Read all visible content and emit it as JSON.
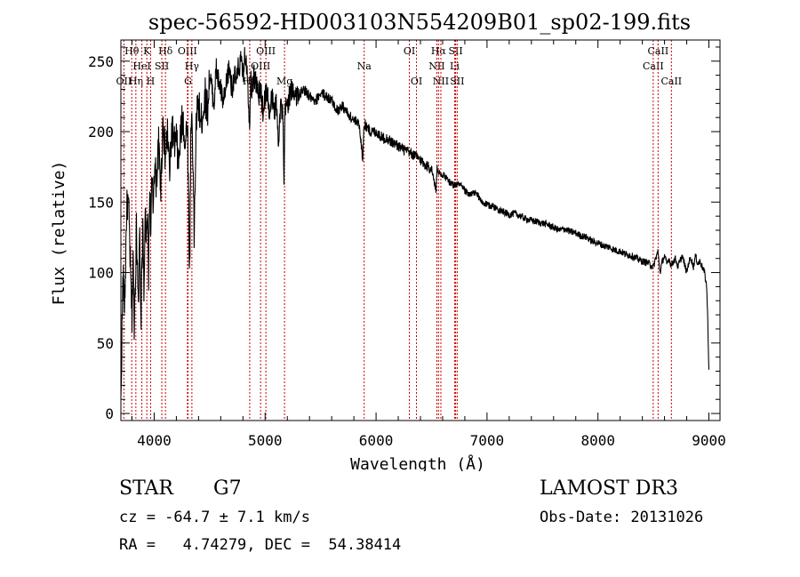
{
  "chart_data": {
    "type": "line",
    "title": "spec-56592-HD003103N554209B01_sp02-199.fits",
    "xlabel": "Wavelength (Å)",
    "ylabel": "Flux (relative)",
    "xlim": [
      3700,
      9100
    ],
    "ylim": [
      -5,
      265
    ],
    "xticks": [
      4000,
      5000,
      6000,
      7000,
      8000,
      9000
    ],
    "yticks": [
      0,
      50,
      100,
      150,
      200,
      250
    ],
    "xtick_labels": [
      "4000",
      "5000",
      "6000",
      "7000",
      "8000",
      "9000"
    ],
    "ytick_labels": [
      "0",
      "50",
      "100",
      "150",
      "200",
      "250"
    ],
    "series": [
      {
        "name": "flux",
        "x": [
          3700,
          3710,
          3720,
          3730,
          3740,
          3750,
          3760,
          3770,
          3780,
          3790,
          3800,
          3810,
          3820,
          3830,
          3840,
          3850,
          3860,
          3870,
          3880,
          3890,
          3900,
          3910,
          3920,
          3930,
          3940,
          3950,
          3960,
          3970,
          3980,
          3990,
          4000,
          4020,
          4040,
          4060,
          4080,
          4100,
          4120,
          4140,
          4160,
          4180,
          4200,
          4220,
          4240,
          4260,
          4280,
          4300,
          4310,
          4320,
          4330,
          4340,
          4350,
          4360,
          4380,
          4400,
          4420,
          4440,
          4460,
          4480,
          4500,
          4520,
          4540,
          4560,
          4580,
          4600,
          4620,
          4640,
          4660,
          4680,
          4700,
          4720,
          4740,
          4760,
          4780,
          4800,
          4820,
          4840,
          4860,
          4870,
          4880,
          4900,
          4920,
          4940,
          4960,
          4980,
          5000,
          5020,
          5040,
          5060,
          5080,
          5100,
          5120,
          5140,
          5160,
          5170,
          5180,
          5200,
          5220,
          5250,
          5300,
          5350,
          5400,
          5450,
          5500,
          5550,
          5600,
          5650,
          5700,
          5750,
          5800,
          5850,
          5880,
          5890,
          5900,
          5950,
          6000,
          6050,
          6100,
          6150,
          6200,
          6250,
          6300,
          6350,
          6400,
          6450,
          6500,
          6540,
          6550,
          6563,
          6570,
          6580,
          6600,
          6650,
          6700,
          6750,
          6800,
          6850,
          6900,
          6950,
          7000,
          7050,
          7100,
          7150,
          7200,
          7250,
          7300,
          7350,
          7400,
          7450,
          7500,
          7550,
          7600,
          7650,
          7700,
          7750,
          7800,
          7850,
          7900,
          7950,
          8000,
          8050,
          8100,
          8150,
          8200,
          8250,
          8300,
          8350,
          8400,
          8450,
          8480,
          8500,
          8520,
          8540,
          8560,
          8580,
          8600,
          8620,
          8640,
          8660,
          8680,
          8700,
          8720,
          8740,
          8760,
          8780,
          8800,
          8820,
          8840,
          8860,
          8880,
          8900,
          8920,
          8940,
          8960,
          8980,
          8990,
          9000
        ],
        "values": [
          5,
          60,
          100,
          75,
          95,
          140,
          150,
          145,
          120,
          90,
          70,
          110,
          65,
          95,
          130,
          105,
          85,
          125,
          60,
          110,
          130,
          80,
          150,
          115,
          140,
          100,
          160,
          130,
          165,
          145,
          175,
          165,
          190,
          160,
          210,
          180,
          200,
          170,
          205,
          190,
          195,
          175,
          200,
          210,
          190,
          210,
          150,
          100,
          195,
          215,
          180,
          125,
          210,
          220,
          205,
          215,
          225,
          215,
          240,
          230,
          220,
          245,
          235,
          230,
          220,
          225,
          240,
          245,
          230,
          240,
          235,
          245,
          250,
          240,
          255,
          245,
          200,
          245,
          230,
          240,
          235,
          225,
          230,
          215,
          225,
          230,
          210,
          225,
          215,
          220,
          195,
          220,
          210,
          160,
          215,
          220,
          225,
          230,
          225,
          230,
          225,
          220,
          228,
          225,
          222,
          215,
          218,
          212,
          208,
          205,
          180,
          202,
          205,
          200,
          200,
          196,
          195,
          192,
          190,
          187,
          185,
          183,
          180,
          176,
          174,
          158,
          176,
          170,
          172,
          168,
          170,
          165,
          162,
          163,
          158,
          155,
          157,
          150,
          148,
          147,
          145,
          143,
          141,
          142,
          140,
          138,
          137,
          136,
          135,
          134,
          132,
          130,
          131,
          129,
          128,
          126,
          125,
          122,
          121,
          119,
          118,
          116,
          115,
          113,
          112,
          110,
          108,
          107,
          105,
          104,
          110,
          115,
          100,
          108,
          112,
          106,
          110,
          105,
          108,
          110,
          104,
          108,
          112,
          106,
          100,
          108,
          110,
          104,
          112,
          106,
          108,
          104,
          100,
          90,
          65,
          30
        ]
      }
    ],
    "lines": [
      {
        "name": "OII",
        "wl": 3727,
        "row": 2
      },
      {
        "name": "Hθ",
        "wl": 3798,
        "row": 0
      },
      {
        "name": "Hη",
        "wl": 3835,
        "row": 2
      },
      {
        "name": "HeI",
        "wl": 3889,
        "row": 1
      },
      {
        "name": "K",
        "wl": 3934,
        "row": 0
      },
      {
        "name": "H",
        "wl": 3968,
        "row": 2
      },
      {
        "name": "SII",
        "wl": 4069,
        "row": 1
      },
      {
        "name": "Hδ",
        "wl": 4102,
        "row": 0
      },
      {
        "name": "OIII",
        "wl": 4300,
        "row": 0
      },
      {
        "name": "Hγ",
        "wl": 4340,
        "row": 1
      },
      {
        "name": "G",
        "wl": 4305,
        "row": 2
      },
      {
        "name": "Hβ",
        "wl": 4861,
        "row": 2
      },
      {
        "name": "OIII",
        "wl": 4959,
        "row": 1
      },
      {
        "name": "OIII",
        "wl": 5007,
        "row": 0
      },
      {
        "name": "Mg",
        "wl": 5175,
        "row": 2
      },
      {
        "name": "Na",
        "wl": 5893,
        "row": 1
      },
      {
        "name": "OI",
        "wl": 6300,
        "row": 0
      },
      {
        "name": "OI",
        "wl": 6364,
        "row": 2
      },
      {
        "name": "NII",
        "wl": 6548,
        "row": 1
      },
      {
        "name": "Hα",
        "wl": 6563,
        "row": 0
      },
      {
        "name": "NII",
        "wl": 6584,
        "row": 2
      },
      {
        "name": "SII",
        "wl": 6717,
        "row": 0
      },
      {
        "name": "Li",
        "wl": 6708,
        "row": 1
      },
      {
        "name": "SII",
        "wl": 6731,
        "row": 2
      },
      {
        "name": "CaII",
        "wl": 8498,
        "row": 1
      },
      {
        "name": "CaII",
        "wl": 8542,
        "row": 0
      },
      {
        "name": "CaII",
        "wl": 8662,
        "row": 2
      }
    ],
    "line_color": "#cc0000",
    "series_color": "#000000"
  },
  "info": {
    "object_class": "STAR",
    "subclass": "G7",
    "survey": "LAMOST DR3",
    "redshift": "cz = -64.7 ± 7.1 km/s",
    "obs_date": "Obs-Date: 20131026",
    "coords": "RA =   4.74279, DEC =  54.38414"
  }
}
